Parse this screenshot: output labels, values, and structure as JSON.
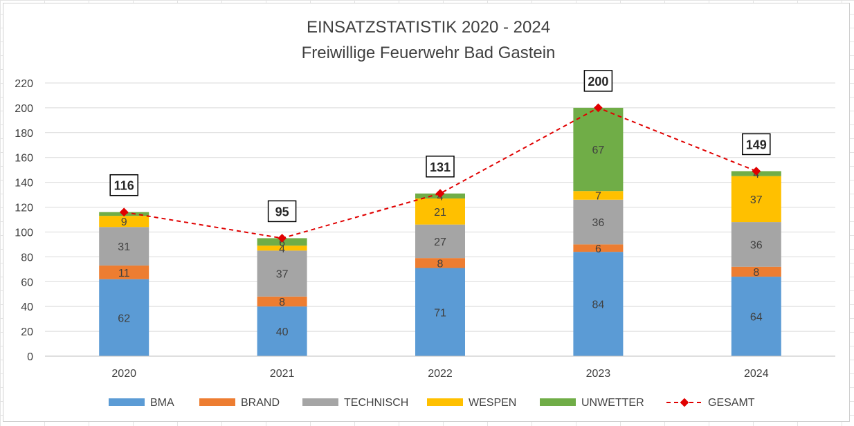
{
  "chart_data": {
    "type": "bar",
    "stacked": true,
    "title": "EINSATZSTATISTIK 2020 - 2024",
    "subtitle": "Freiwillige Feuerwehr Bad Gastein",
    "categories": [
      "2020",
      "2021",
      "2022",
      "2023",
      "2024"
    ],
    "series": [
      {
        "name": "BMA",
        "color": "#5B9BD5",
        "values": [
          62,
          40,
          71,
          84,
          64
        ]
      },
      {
        "name": "BRAND",
        "color": "#ED7D31",
        "values": [
          11,
          8,
          8,
          6,
          8
        ]
      },
      {
        "name": "TECHNISCH",
        "color": "#A5A5A5",
        "values": [
          31,
          37,
          27,
          36,
          36
        ]
      },
      {
        "name": "WESPEN",
        "color": "#FFC000",
        "values": [
          9,
          4,
          21,
          7,
          37
        ]
      },
      {
        "name": "UNWETTER",
        "color": "#70AD47",
        "values": [
          3,
          6,
          4,
          67,
          4
        ]
      }
    ],
    "segment_labels": [
      [
        "62",
        "11",
        "31",
        "9",
        ""
      ],
      [
        "40",
        "8",
        "37",
        "4",
        "6"
      ],
      [
        "71",
        "8",
        "27",
        "21",
        "4"
      ],
      [
        "84",
        "6",
        "36",
        "7",
        "67"
      ],
      [
        "64",
        "8",
        "36",
        "37",
        "4"
      ]
    ],
    "line_series": {
      "name": "GESAMT",
      "color": "#E00000",
      "style": "dashed",
      "marker": "diamond",
      "values": [
        116,
        95,
        131,
        200,
        149
      ],
      "labels": [
        "116",
        "95",
        "131",
        "200",
        "149"
      ]
    },
    "y_ticks": [
      "0",
      "20",
      "40",
      "60",
      "80",
      "100",
      "120",
      "140",
      "160",
      "180",
      "200",
      "220"
    ],
    "ylim": [
      0,
      220
    ],
    "grid": true,
    "legend_position": "bottom"
  }
}
